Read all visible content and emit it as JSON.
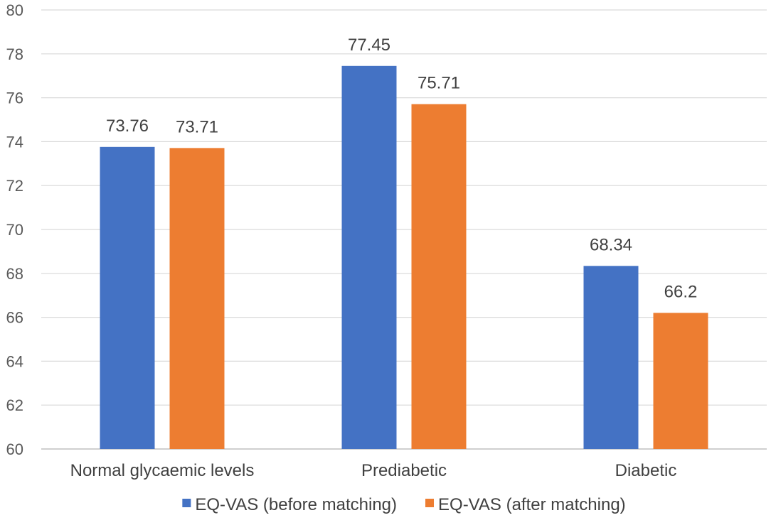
{
  "chart_data": {
    "type": "bar",
    "title": "",
    "xlabel": "",
    "ylabel": "",
    "categories": [
      "Normal glycaemic levels",
      "Prediabetic",
      "Diabetic"
    ],
    "series": [
      {
        "name": "EQ-VAS (before matching)",
        "values": [
          73.76,
          77.45,
          68.34
        ],
        "labels": [
          "73.76",
          "77.45",
          "68.34"
        ],
        "color": "#4472C4"
      },
      {
        "name": "EQ-VAS (after matching)",
        "values": [
          73.71,
          75.71,
          66.2
        ],
        "labels": [
          "73.71",
          "75.71",
          "66.2"
        ],
        "color": "#ED7D31"
      }
    ],
    "ylim": [
      60,
      80
    ],
    "yticks": [
      "60",
      "62",
      "64",
      "66",
      "68",
      "70",
      "72",
      "74",
      "76",
      "78",
      "80"
    ],
    "grid": true,
    "legend_position": "bottom"
  }
}
